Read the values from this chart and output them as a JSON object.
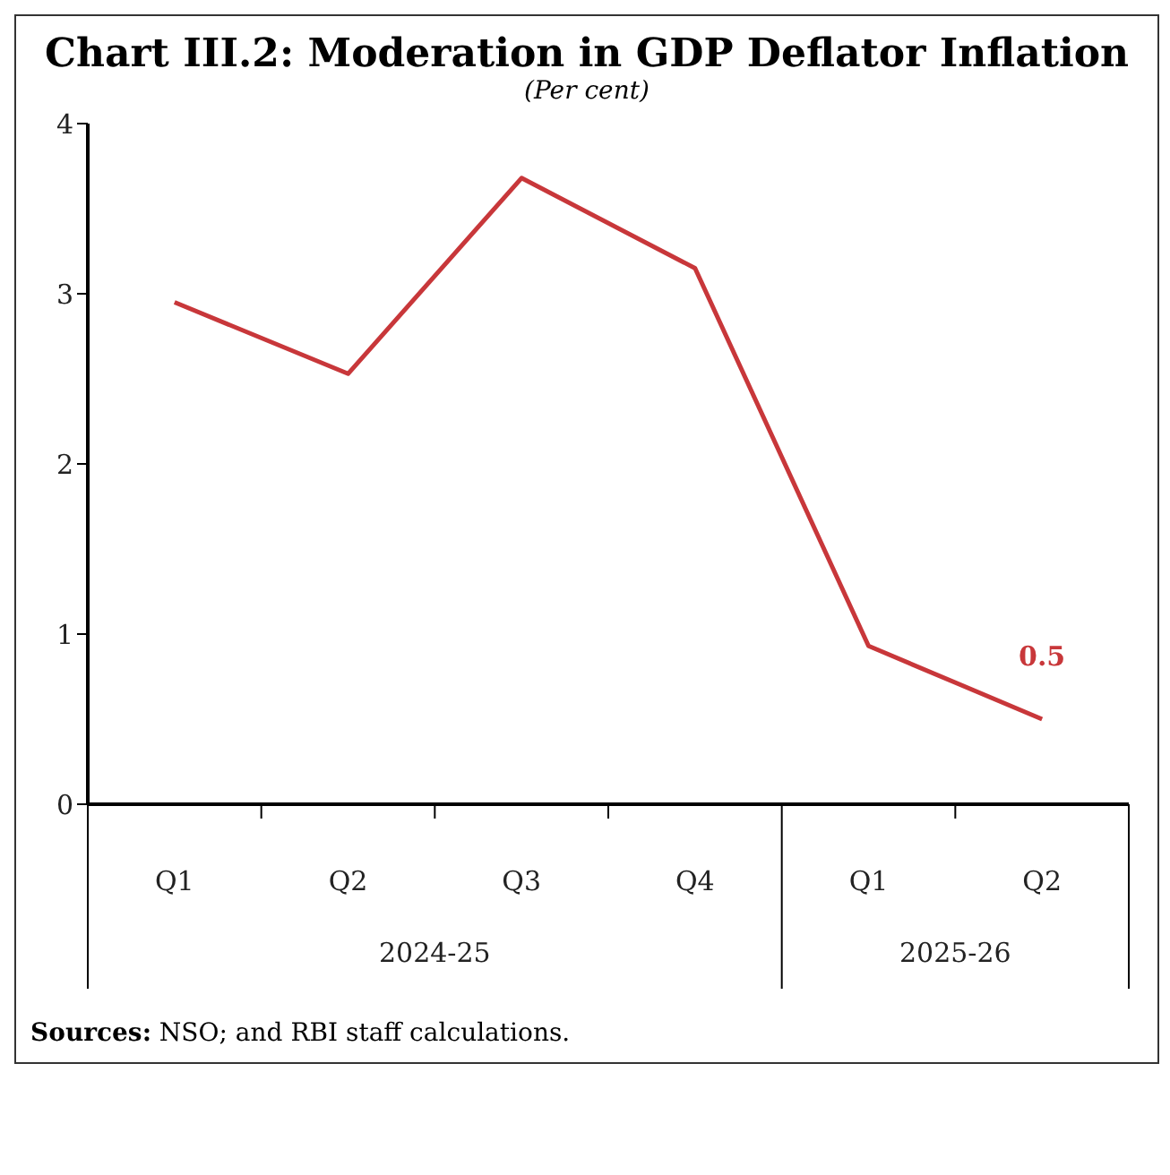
{
  "chart_data": {
    "type": "line",
    "title": "Chart III.2: Moderation in GDP Deflator Inflation",
    "subtitle": "(Per cent)",
    "categories": [
      "Q1",
      "Q2",
      "Q3",
      "Q4",
      "Q1",
      "Q2"
    ],
    "series": [
      {
        "color": "#c8373a",
        "values": [
          2.95,
          2.53,
          3.68,
          3.15,
          0.93,
          0.5
        ],
        "value_labels": [
          null,
          null,
          null,
          null,
          null,
          "0.5"
        ]
      }
    ],
    "ylim": [
      0,
      4
    ],
    "yticks": [
      0,
      1,
      2,
      3,
      4
    ],
    "marker": "none",
    "annotations": [
      "2024-25",
      "2025-26",
      "Sources: NSO; and RBI staff calculations."
    ]
  }
}
